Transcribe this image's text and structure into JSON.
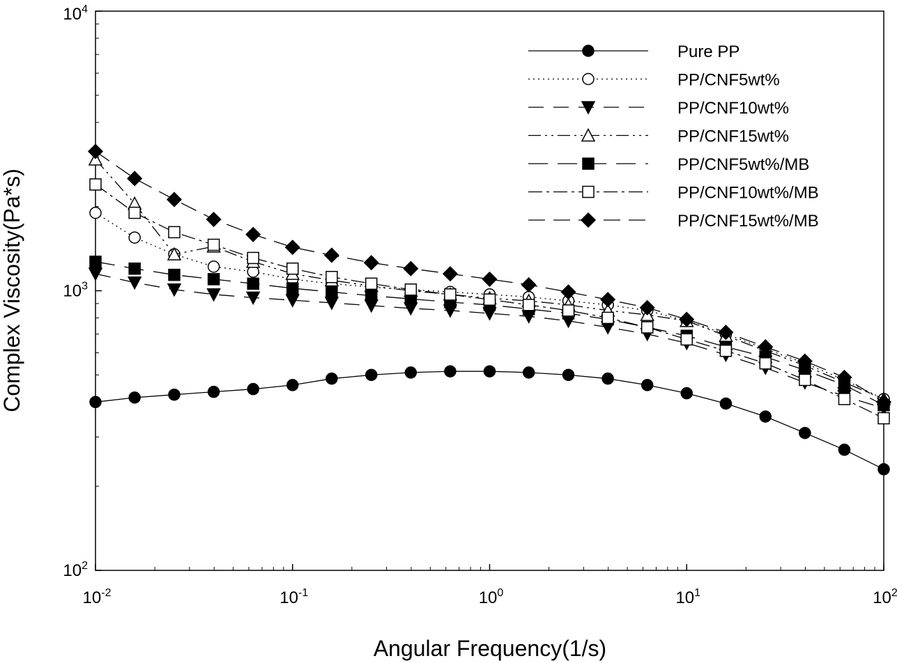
{
  "chart_data": {
    "type": "line",
    "title": "",
    "xlabel": "Angular Frequency(1/s)",
    "ylabel": "Complex Viscosity(Pa*s)",
    "x_scale": "log",
    "y_scale": "log",
    "xlim": [
      0.01,
      100
    ],
    "ylim": [
      100,
      10000
    ],
    "grid": false,
    "legend_position": "top-right",
    "x_ticks": [
      {
        "base": "10",
        "exp": "-2",
        "value": 0.01
      },
      {
        "base": "10",
        "exp": "-1",
        "value": 0.1
      },
      {
        "base": "10",
        "exp": "0",
        "value": 1
      },
      {
        "base": "10",
        "exp": "1",
        "value": 10
      },
      {
        "base": "10",
        "exp": "2",
        "value": 100
      }
    ],
    "y_ticks": [
      {
        "base": "10",
        "exp": "2",
        "value": 100
      },
      {
        "base": "10",
        "exp": "3",
        "value": 1000
      },
      {
        "base": "10",
        "exp": "4",
        "value": 10000
      }
    ],
    "x": [
      0.01,
      0.0158,
      0.0251,
      0.0398,
      0.0631,
      0.1,
      0.158,
      0.251,
      0.398,
      0.631,
      1,
      1.58,
      2.51,
      3.98,
      6.31,
      10,
      15.8,
      25.1,
      39.8,
      63.1,
      100
    ],
    "series": [
      {
        "name": "Pure PP",
        "marker": "circle-filled",
        "dash": "",
        "values": [
          400,
          415,
          425,
          435,
          445,
          460,
          485,
          500,
          510,
          515,
          515,
          510,
          500,
          485,
          460,
          430,
          395,
          355,
          310,
          270,
          230
        ]
      },
      {
        "name": "PP/CNF5wt%",
        "marker": "circle-open",
        "dash": "2 5",
        "values": [
          1900,
          1550,
          1350,
          1220,
          1170,
          1100,
          1060,
          1030,
          1010,
          990,
          970,
          950,
          920,
          890,
          850,
          780,
          700,
          620,
          550,
          480,
          410
        ]
      },
      {
        "name": "PP/CNF10wt%",
        "marker": "triangle-down-filled",
        "dash": "22 14",
        "values": [
          1150,
          1070,
          1010,
          970,
          945,
          925,
          905,
          885,
          865,
          850,
          830,
          810,
          780,
          740,
          700,
          650,
          590,
          530,
          470,
          420,
          380
        ]
      },
      {
        "name": "PP/CNF15wt%",
        "marker": "triangle-up-open",
        "dash": "18 6 3 6 3 6",
        "values": [
          2950,
          2050,
          1350,
          1440,
          1270,
          1150,
          1090,
          1040,
          1000,
          970,
          940,
          920,
          890,
          850,
          820,
          780,
          690,
          610,
          540,
          470,
          410
        ]
      },
      {
        "name": "PP/CNF5wt%/MB",
        "marker": "square-filled",
        "dash": "28 14",
        "values": [
          1270,
          1200,
          1140,
          1100,
          1060,
          1020,
          990,
          960,
          935,
          910,
          890,
          860,
          830,
          790,
          740,
          690,
          630,
          580,
          520,
          460,
          390
        ]
      },
      {
        "name": "PP/CNF10wt%/MB",
        "marker": "square-open",
        "dash": "20 6 4 6",
        "values": [
          2400,
          1900,
          1620,
          1460,
          1310,
          1200,
          1120,
          1060,
          1010,
          970,
          930,
          890,
          850,
          800,
          740,
          670,
          610,
          550,
          480,
          410,
          350
        ]
      },
      {
        "name": "PP/CNF15wt%/MB",
        "marker": "diamond-filled",
        "dash": "24 12",
        "values": [
          3150,
          2520,
          2120,
          1800,
          1590,
          1430,
          1340,
          1260,
          1200,
          1150,
          1100,
          1050,
          990,
          930,
          870,
          790,
          710,
          630,
          560,
          490,
          400
        ]
      }
    ]
  }
}
